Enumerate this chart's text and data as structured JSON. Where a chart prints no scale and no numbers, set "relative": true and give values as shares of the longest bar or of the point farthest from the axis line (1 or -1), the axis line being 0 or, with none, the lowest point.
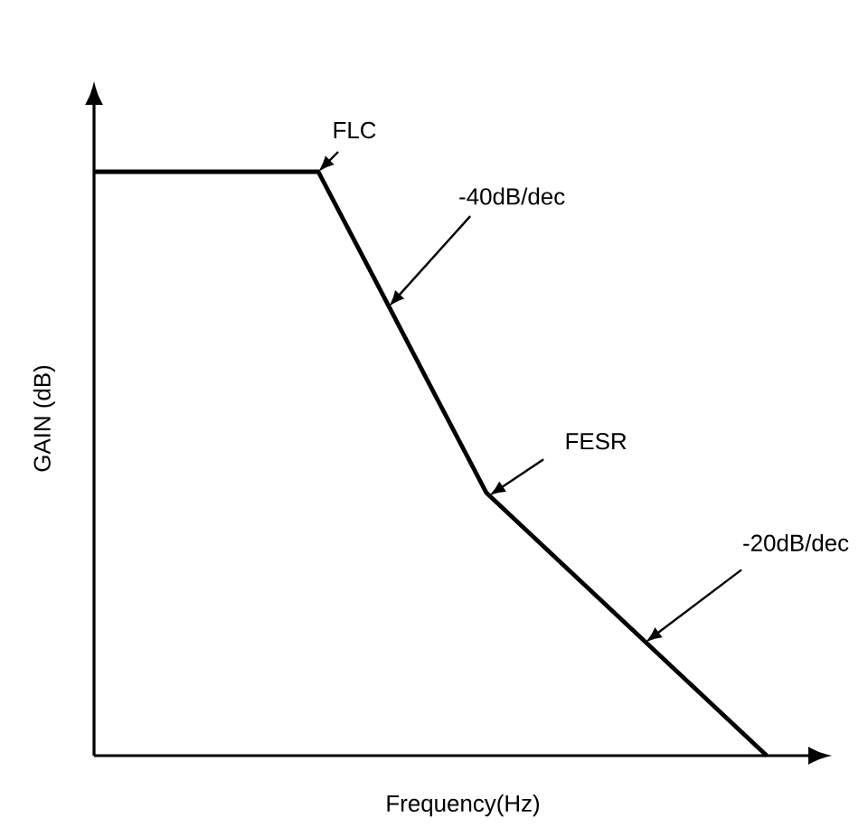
{
  "chart_data": {
    "type": "line",
    "relative": true,
    "xlabel": "Frequency(Hz)",
    "ylabel": "GAIN (dB)",
    "color": "#000000",
    "categories": [
      null,
      null,
      null,
      null,
      null,
      null,
      null,
      null,
      null,
      null,
      null,
      null,
      null
    ],
    "values": [
      1,
      1,
      1,
      1,
      1,
      0.817,
      0.633,
      0.45,
      0.36,
      0.27,
      0.18,
      0.09,
      0
    ],
    "annotations": [
      "FLC",
      "-40dB/dec",
      "FESR",
      "-20dB/dec"
    ]
  }
}
